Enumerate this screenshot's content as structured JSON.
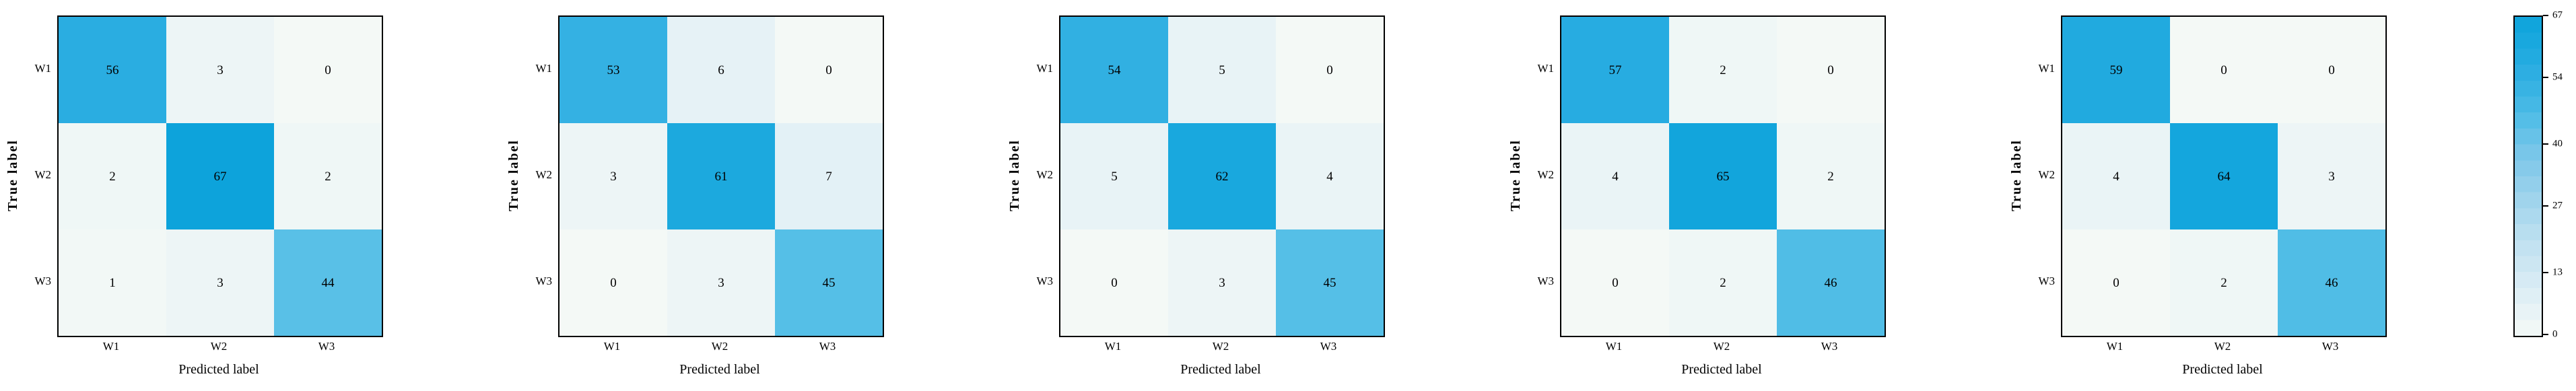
{
  "figure": {
    "background": "#ffffff",
    "axis_color": "#000000",
    "text_color": "#000000",
    "ylabel": "True label",
    "xlabel": "Predicted label"
  },
  "chart_data": {
    "type": "heatmap",
    "description": "Five 3x3 confusion matrices sharing one colorbar",
    "x_categories": [
      "W1",
      "W2",
      "W3"
    ],
    "y_categories": [
      "W1",
      "W2",
      "W3"
    ],
    "xlabel": "Predicted label",
    "ylabel": "True label",
    "panels": [
      {
        "values": [
          [
            56,
            3,
            0
          ],
          [
            2,
            67,
            2
          ],
          [
            1,
            3,
            44
          ]
        ]
      },
      {
        "values": [
          [
            53,
            6,
            0
          ],
          [
            3,
            61,
            7
          ],
          [
            0,
            3,
            45
          ]
        ]
      },
      {
        "values": [
          [
            54,
            5,
            0
          ],
          [
            5,
            62,
            4
          ],
          [
            0,
            3,
            45
          ]
        ]
      },
      {
        "values": [
          [
            57,
            2,
            0
          ],
          [
            4,
            65,
            2
          ],
          [
            0,
            2,
            46
          ]
        ]
      },
      {
        "values": [
          [
            59,
            0,
            0
          ],
          [
            4,
            64,
            3
          ],
          [
            0,
            2,
            46
          ]
        ]
      }
    ],
    "colorbar": {
      "vmin": 0,
      "vmax": 67,
      "ticks": [
        67,
        54,
        40,
        27,
        13,
        0
      ],
      "position": "right",
      "banding_steps": 20
    },
    "colormap": [
      {
        "t": 0.0,
        "color": "#f4f9f6"
      },
      {
        "t": 0.1,
        "color": "#e4f1f6"
      },
      {
        "t": 0.2,
        "color": "#d1e8f3"
      },
      {
        "t": 0.3,
        "color": "#bee0f0"
      },
      {
        "t": 0.4,
        "color": "#a6d6ed"
      },
      {
        "t": 0.5,
        "color": "#8dccea"
      },
      {
        "t": 0.6,
        "color": "#71c4e8"
      },
      {
        "t": 0.66,
        "color": "#58c0e7"
      },
      {
        "t": 0.75,
        "color": "#3eb5e4"
      },
      {
        "t": 0.84,
        "color": "#29ade1"
      },
      {
        "t": 0.92,
        "color": "#1aa8de"
      },
      {
        "t": 1.0,
        "color": "#0da3db"
      }
    ],
    "layout_hints": {
      "grid": false,
      "cell_text_color": "#000000"
    }
  }
}
